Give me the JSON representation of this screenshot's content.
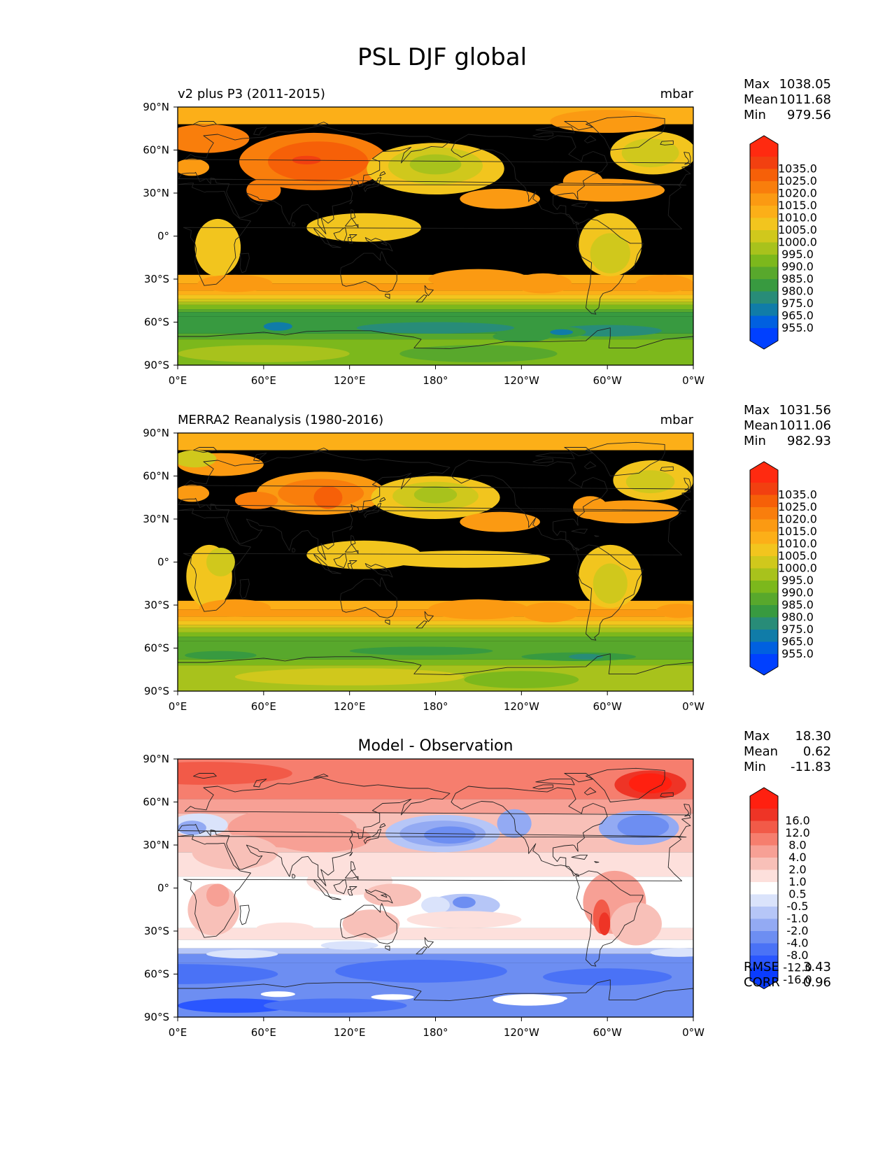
{
  "figure": {
    "title": "PSL DJF global"
  },
  "map_axes": {
    "lat_ticks": [
      "90°N",
      "60°N",
      "30°N",
      "0°",
      "30°S",
      "60°S",
      "90°S"
    ],
    "lon_ticks": [
      "0°E",
      "60°E",
      "120°E",
      "180°",
      "120°W",
      "60°W",
      "0°W"
    ],
    "lat_range": [
      -90,
      90
    ],
    "lon_range": [
      0,
      360
    ]
  },
  "colors": {
    "field_levels": [
      "#0040ff",
      "#0060e0",
      "#107ca8",
      "#288c78",
      "#389a40",
      "#58a82c",
      "#7cb81c",
      "#a8c21c",
      "#d0c81c",
      "#f2c51e",
      "#fcaf18",
      "#fb9a12",
      "#f97e0c",
      "#f66008",
      "#f24010",
      "#ff2a10"
    ],
    "diff_levels": [
      "#0a3cff",
      "#2a56ff",
      "#4a72f6",
      "#6d8ef2",
      "#93aaf3",
      "#b6c6f7",
      "#dae3fb",
      "#ffffff",
      "#fde0dc",
      "#f8c0b8",
      "#f7a095",
      "#f67e6e",
      "#f25a48",
      "#ee3426",
      "#ff2010"
    ],
    "coast": "#222222"
  },
  "chart_data": [
    {
      "type": "heatmap",
      "name": "test",
      "title": "v2 plus P3 (2011-2015)",
      "units": "mbar",
      "stats": {
        "Max": "1038.05",
        "Mean": "1011.68",
        "Min": "979.56"
      },
      "colorbar": {
        "labels": [
          "1035.0",
          "1025.0",
          "1020.0",
          "1015.0",
          "1010.0",
          "1005.0",
          "1000.0",
          "995.0",
          "990.0",
          "985.0",
          "980.0",
          "975.0",
          "965.0",
          "955.0"
        ],
        "values": [
          955,
          965,
          975,
          980,
          985,
          990,
          995,
          1000,
          1005,
          1010,
          1015,
          1020,
          1025,
          1035
        ],
        "extend": "both"
      },
      "xlim": [
        0,
        360
      ],
      "ylim": [
        -90,
        90
      ]
    },
    {
      "type": "heatmap",
      "name": "reference",
      "title": "MERRA2 Reanalysis (1980-2016)",
      "units": "mbar",
      "stats": {
        "Max": "1031.56",
        "Mean": "1011.06",
        "Min": "982.93"
      },
      "colorbar": {
        "labels": [
          "1035.0",
          "1025.0",
          "1020.0",
          "1015.0",
          "1010.0",
          "1005.0",
          "1000.0",
          "995.0",
          "990.0",
          "985.0",
          "980.0",
          "975.0",
          "965.0",
          "955.0"
        ],
        "values": [
          955,
          965,
          975,
          980,
          985,
          990,
          995,
          1000,
          1005,
          1010,
          1015,
          1020,
          1025,
          1035
        ],
        "extend": "both"
      },
      "xlim": [
        0,
        360
      ],
      "ylim": [
        -90,
        90
      ]
    },
    {
      "type": "heatmap",
      "name": "difference",
      "title": "Model - Observation",
      "units": "",
      "stats": {
        "Max": "18.30",
        "Mean": "0.62",
        "Min": "-11.83"
      },
      "metrics": {
        "RMSE": "3.43",
        "CORR": "0.96"
      },
      "colorbar": {
        "labels": [
          "16.0",
          "12.0",
          "8.0",
          "4.0",
          "2.0",
          "1.0",
          "0.5",
          "-0.5",
          "-1.0",
          "-2.0",
          "-4.0",
          "-8.0",
          "-12.0",
          "-16.0"
        ],
        "values": [
          -16,
          -12,
          -8,
          -4,
          -2,
          -1,
          -0.5,
          0.5,
          1,
          2,
          4,
          8,
          12,
          16
        ],
        "extend": "both"
      },
      "xlim": [
        0,
        360
      ],
      "ylim": [
        -90,
        90
      ]
    }
  ]
}
